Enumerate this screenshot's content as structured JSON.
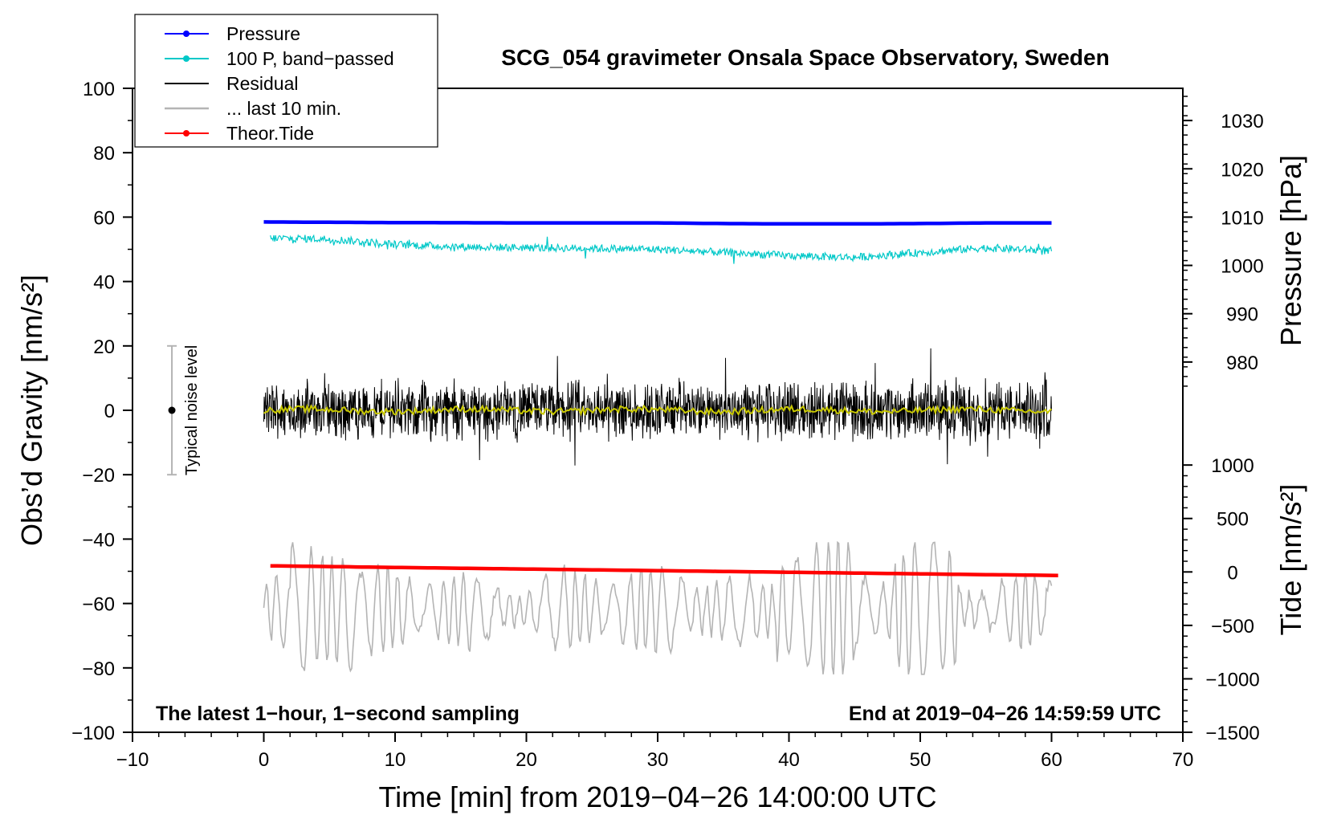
{
  "chart_data": {
    "type": "line",
    "title": "SCG_054 gravimeter Onsala Space Observatory, Sweden",
    "xlabel": "Time [min] from 2019−04−26 14:00:00 UTC",
    "ylabel_left": "Obs’d Gravity [nm/s²]",
    "ylabel_right_pressure": "Pressure [hPa]",
    "ylabel_right_tide": "Tide [nm/s²]",
    "xlim": [
      -10,
      70
    ],
    "ylim": [
      -100,
      100
    ],
    "x_ticks": [
      "−10",
      "0",
      "10",
      "20",
      "30",
      "40",
      "50",
      "60",
      "70"
    ],
    "x_tick_values": [
      -10,
      0,
      10,
      20,
      30,
      40,
      50,
      60,
      70
    ],
    "y_ticks": [
      "−100",
      "−80",
      "−60",
      "−40",
      "−20",
      "0",
      "20",
      "40",
      "60",
      "80",
      "100"
    ],
    "y_tick_values": [
      -100,
      -80,
      -60,
      -40,
      -20,
      0,
      20,
      40,
      60,
      80,
      100
    ],
    "pressure_axis": {
      "ticks": [
        "980",
        "990",
        "1000",
        "1010",
        "1020",
        "1030"
      ],
      "tick_values": [
        980,
        990,
        1000,
        1010,
        1020,
        1030
      ],
      "map": {
        "value_a": 1010,
        "gravity_a": 60,
        "value_b": 980,
        "gravity_b": 15
      }
    },
    "tide_axis": {
      "ticks": [
        "−1500",
        "−1000",
        "−500",
        "0",
        "500",
        "1000"
      ],
      "tick_values": [
        -1500,
        -1000,
        -500,
        0,
        500,
        1000
      ],
      "map": {
        "value_a": -1500,
        "gravity_a": -100,
        "value_b": 1000,
        "gravity_b": -17
      }
    },
    "legend": {
      "placement": "top-left",
      "entries": [
        {
          "label": "Pressure",
          "color": "#0000ff",
          "marker": true
        },
        {
          "label": "100 P, band−passed",
          "color": "#00c8c8",
          "marker": true
        },
        {
          "label": "Residual",
          "color": "#000000",
          "marker": false
        },
        {
          "label": "... last 10 min.",
          "color": "#b4b4b4",
          "marker": false
        },
        {
          "label": "Theor.Tide",
          "color": "#ff0000",
          "marker": true
        }
      ]
    },
    "noise_bar": {
      "label": "Typical noise level",
      "x": -7,
      "center": 0,
      "low": -20,
      "high": 20
    },
    "annotations": {
      "bottom_left": "The latest 1−hour, 1−second sampling",
      "bottom_right": "End at 2019−04−26 14:59:59 UTC"
    },
    "series": [
      {
        "name": "Pressure",
        "color": "#0000ff",
        "unit": "gravity-axis",
        "x": [
          0,
          10,
          20,
          30,
          35,
          40,
          45,
          50,
          55,
          60
        ],
        "values": [
          58.5,
          58.3,
          58.2,
          58.2,
          58.0,
          57.9,
          57.9,
          58.0,
          58.2,
          58.2
        ]
      },
      {
        "name": "100 P, band-passed",
        "color": "#00c8c8",
        "unit": "gravity-axis",
        "x": [
          0,
          5,
          10,
          15,
          20,
          25,
          30,
          35,
          40,
          45,
          50,
          55,
          60
        ],
        "values": [
          53.5,
          53.2,
          51.5,
          50.8,
          50.5,
          50.3,
          50.0,
          49.0,
          48.0,
          47.5,
          49.0,
          50.5,
          49.5
        ],
        "noise_amplitude": 1.2
      },
      {
        "name": "Residual",
        "color": "#000000",
        "unit": "gravity-axis",
        "x_range": [
          0,
          60
        ],
        "mean": 0,
        "typical_amplitude": 8,
        "extremes": [
          -21,
          22
        ]
      },
      {
        "name": "Residual smoothed",
        "color": "#c8c800",
        "unit": "gravity-axis",
        "x_range": [
          0,
          60
        ],
        "mean": 0,
        "typical_amplitude": 1
      },
      {
        "name": "... last 10 min.",
        "color": "#b4b4b4",
        "unit": "gravity-axis",
        "x_range": [
          0,
          60
        ],
        "mean": -62,
        "min": -82,
        "max": -41
      },
      {
        "name": "Theor.Tide",
        "color": "#ff0000",
        "unit": "gravity-axis",
        "x": [
          0.5,
          10,
          20,
          30,
          40,
          50,
          60.5
        ],
        "values": [
          -48.3,
          -48.8,
          -49.3,
          -49.8,
          -50.3,
          -50.8,
          -51.3
        ]
      }
    ]
  }
}
